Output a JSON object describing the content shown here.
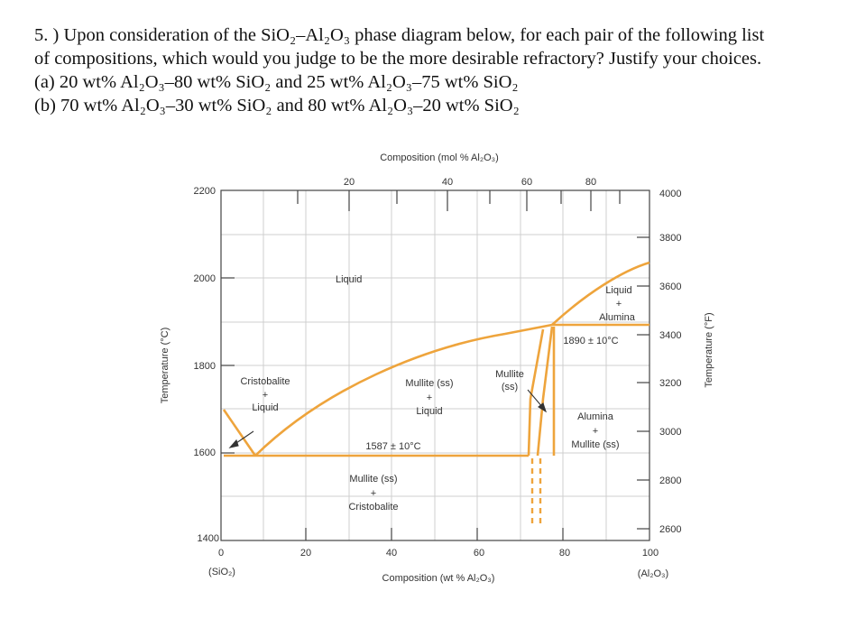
{
  "question": {
    "line1": "5. ) Upon consideration of the SiO₂–Al₂O₃ phase diagram below, for each pair of the following list",
    "line2": "of compositions, which would you judge to be the more desirable refractory? Justify your choices.",
    "line3": "(a) 20 wt% Al₂O₃–80 wt% SiO₂ and 25 wt% Al₂O₃–75 wt% SiO₂",
    "line4": "(b) 70 wt% Al₂O₃–30 wt% SiO₂ and 80 wt% Al₂O₃–20 wt% SiO₂"
  },
  "figure": {
    "top_axis_title": "Composition (mol % Al₂O₃)",
    "top_ticks": [
      "20",
      "40",
      "60",
      "80"
    ],
    "bottom_axis_title": "Composition (wt % Al₂O₃)",
    "bottom_ticks": [
      "0",
      "20",
      "40",
      "60",
      "80",
      "100"
    ],
    "left_end_label": "(SiO₂)",
    "right_end_label": "(Al₂O₃)",
    "left_axis_title": "Temperature (°C)",
    "left_ticks": [
      "1400",
      "1600",
      "1800",
      "2000",
      "2200"
    ],
    "right_axis_title": "Temperature (°F)",
    "right_ticks": [
      "2600",
      "2800",
      "3000",
      "3200",
      "3400",
      "3600",
      "3800",
      "4000"
    ],
    "regions": {
      "liquid": "Liquid",
      "liquid_alumina_1": "Liquid",
      "liquid_alumina_2": "+",
      "liquid_alumina_3": "Alumina",
      "cristobalite_liquid_1": "Cristobalite",
      "cristobalite_liquid_2": "+",
      "cristobalite_liquid_3": "Liquid",
      "mullite_liquid_1": "Mullite (ss)",
      "mullite_liquid_2": "+",
      "mullite_liquid_3": "Liquid",
      "mullite_ss_1": "Mullite",
      "mullite_ss_2": "(ss)",
      "alumina_mullite_1": "Alumina",
      "alumina_mullite_2": "+",
      "alumina_mullite_3": "Mullite (ss)",
      "mullite_cristobalite_1": "Mullite (ss)",
      "mullite_cristobalite_2": "+",
      "mullite_cristobalite_3": "Cristobalite"
    },
    "eutectic_label": "1587 ± 10°C",
    "peritectic_label": "1890 ± 10°C",
    "line_color": "#eea43c"
  }
}
